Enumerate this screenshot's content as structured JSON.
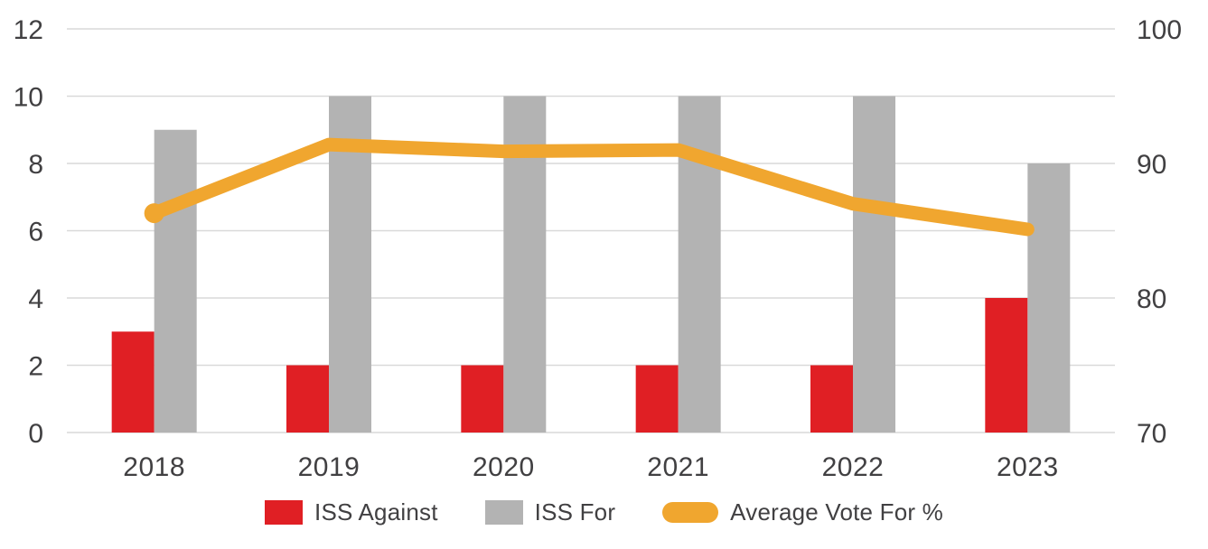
{
  "chart_data": {
    "type": "combo-bar-line",
    "categories": [
      "2018",
      "2019",
      "2020",
      "2021",
      "2022",
      "2023"
    ],
    "series": [
      {
        "name": "ISS Against",
        "type": "bar",
        "axis": "left",
        "color": "#e01f24",
        "values": [
          3,
          2,
          2,
          2,
          2,
          4
        ]
      },
      {
        "name": "ISS For",
        "type": "bar",
        "axis": "left",
        "color": "#b3b3b3",
        "values": [
          9,
          10,
          10,
          10,
          10,
          8
        ]
      },
      {
        "name": "Average Vote For %",
        "type": "line",
        "axis": "right",
        "color": "#f0a62f",
        "values": [
          86.3,
          91.4,
          90.9,
          91.0,
          87.0,
          85.1
        ]
      }
    ],
    "left_axis": {
      "min": 0,
      "max": 12,
      "ticks": [
        "0",
        "2",
        "4",
        "6",
        "8",
        "10",
        "12"
      ]
    },
    "right_axis": {
      "min": 70,
      "max": 100,
      "ticks": [
        "70",
        "80",
        "90",
        "100"
      ]
    },
    "grid": true,
    "gridline_color": "#d9d9d9",
    "tick_label_color": "#414042",
    "legend_position": "bottom",
    "title": "",
    "xlabel": "",
    "ylabel": ""
  },
  "legend": {
    "items": [
      {
        "label": "ISS Against",
        "color": "#e01f24",
        "shape": "square"
      },
      {
        "label": "ISS For",
        "color": "#b3b3b3",
        "shape": "square"
      },
      {
        "label": "Average Vote For %",
        "color": "#f0a62f",
        "shape": "pill"
      }
    ]
  }
}
